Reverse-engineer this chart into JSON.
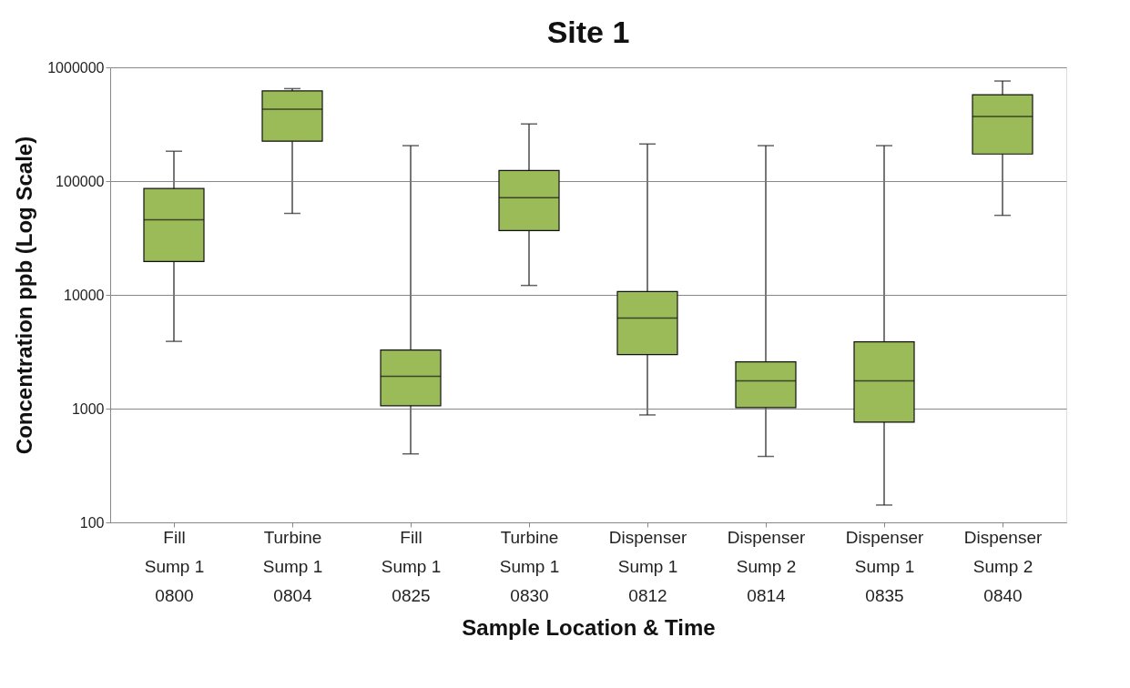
{
  "chart_data": {
    "type": "box",
    "title": "Site 1",
    "xlabel": "Sample Location & Time",
    "ylabel": "Concentration ppb (Log Scale)",
    "categories": [
      "Fill\nSump 1\n0800",
      "Turbine\nSump 1\n0804",
      "Fill\nSump 1\n0825",
      "Turbine\nSump 1\n0830",
      "Dispenser\nSump 1\n0812",
      "Dispenser\nSump 2\n0814",
      "Dispenser\nSump 1\n0835",
      "Dispenser\nSump 2\n0840"
    ],
    "boxes": [
      {
        "low": 3900,
        "q1": 19600,
        "median": 45800,
        "q3": 86000,
        "high": 183000
      },
      {
        "low": 52000,
        "q1": 224000,
        "median": 428000,
        "q3": 620000,
        "high": 650000
      },
      {
        "low": 400,
        "q1": 1060,
        "median": 1920,
        "q3": 3270,
        "high": 205000
      },
      {
        "low": 12100,
        "q1": 36700,
        "median": 71400,
        "q3": 124000,
        "high": 318000
      },
      {
        "low": 880,
        "q1": 2990,
        "median": 6250,
        "q3": 10700,
        "high": 212000
      },
      {
        "low": 380,
        "q1": 1020,
        "median": 1750,
        "q3": 2580,
        "high": 205000
      },
      {
        "low": 142,
        "q1": 760,
        "median": 1750,
        "q3": 3870,
        "high": 205000
      },
      {
        "low": 50000,
        "q1": 173000,
        "median": 369000,
        "q3": 575000,
        "high": 758000
      }
    ],
    "color": "#9bbb59",
    "log": true,
    "ylim": [
      100,
      1000000
    ],
    "yticks": [
      100,
      1000,
      10000,
      100000,
      1000000
    ],
    "grid": "y",
    "legend": false
  }
}
